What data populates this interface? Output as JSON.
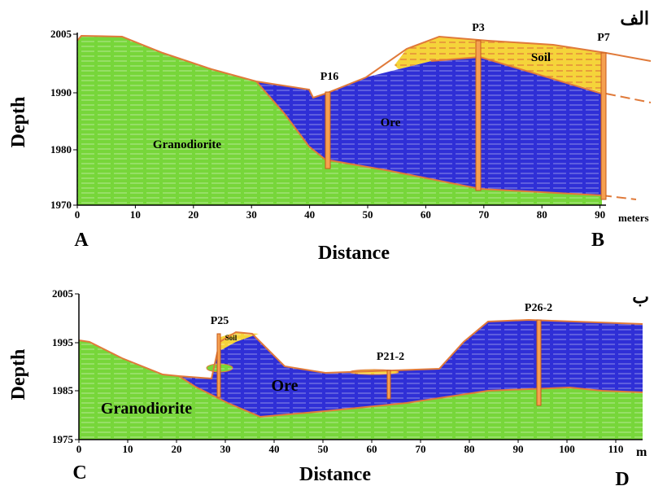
{
  "panels": [
    {
      "corner_label": "الف",
      "y_axis_label": "Depth",
      "x_axis_label": "Distance",
      "x_unit": "meters",
      "start_label": "A",
      "end_label": "B",
      "xticks": [
        "0",
        "10",
        "20",
        "30",
        "40",
        "50",
        "60",
        "70",
        "80",
        "90"
      ],
      "yticks": [
        "2005",
        "1990",
        "1980",
        "1970"
      ],
      "rocks": {
        "host": "Granodiorite",
        "ore": "Ore",
        "soil": "Soil"
      },
      "boreholes": [
        "P16",
        "P3",
        "P7"
      ]
    },
    {
      "corner_label": "ب",
      "y_axis_label": "Depth",
      "x_axis_label": "Distance",
      "x_unit": "m",
      "start_label": "C",
      "end_label": "D",
      "xticks": [
        "0",
        "10",
        "20",
        "30",
        "40",
        "50",
        "60",
        "70",
        "80",
        "90",
        "100",
        "110"
      ],
      "yticks": [
        "2005",
        "1995",
        "1985",
        "1975"
      ],
      "rocks": {
        "host": "Granodiorite",
        "ore": "Ore",
        "soil": "Soil"
      },
      "boreholes": [
        "P25",
        "P21-2",
        "P26-2"
      ]
    }
  ]
}
